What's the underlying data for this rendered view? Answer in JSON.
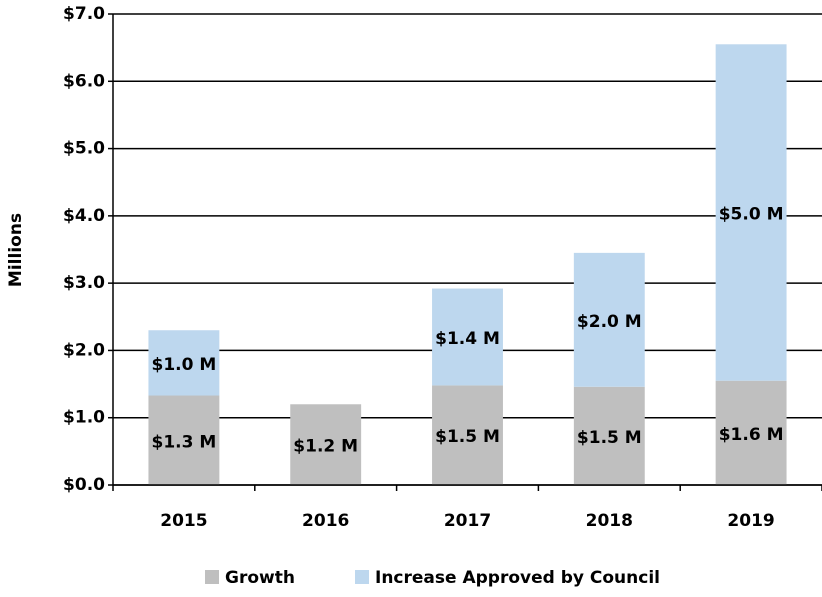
{
  "chart_data": {
    "type": "stacked_bar",
    "y_axis_label": "Millions",
    "categories": [
      "2015",
      "2016",
      "2017",
      "2018",
      "2019"
    ],
    "series": [
      {
        "name": "Growth",
        "color": "#bfbfbf",
        "values": [
          1.33,
          1.2,
          1.48,
          1.46,
          1.55
        ],
        "value_labels": [
          "$1.3 M",
          "$1.2 M",
          "$1.5 M",
          "$1.5 M",
          "$1.6 M"
        ]
      },
      {
        "name": "Increase Approved by Council",
        "color": "#bdd7ee",
        "values": [
          0.97,
          null,
          1.44,
          1.99,
          5.0
        ],
        "value_labels": [
          "$1.0 M",
          null,
          "$1.4 M",
          "$2.0 M",
          "$5.0 M"
        ]
      }
    ],
    "ylim": [
      0,
      7
    ],
    "yticks": [
      {
        "value": 0,
        "label": "$0.0"
      },
      {
        "value": 1,
        "label": "$1.0"
      },
      {
        "value": 2,
        "label": "$2.0"
      },
      {
        "value": 3,
        "label": "$3.0"
      },
      {
        "value": 4,
        "label": "$4.0"
      },
      {
        "value": 5,
        "label": "$5.0"
      },
      {
        "value": 6,
        "label": "$6.0"
      },
      {
        "value": 7,
        "label": "$7.0"
      }
    ],
    "grid": true,
    "legend": "bottom"
  }
}
